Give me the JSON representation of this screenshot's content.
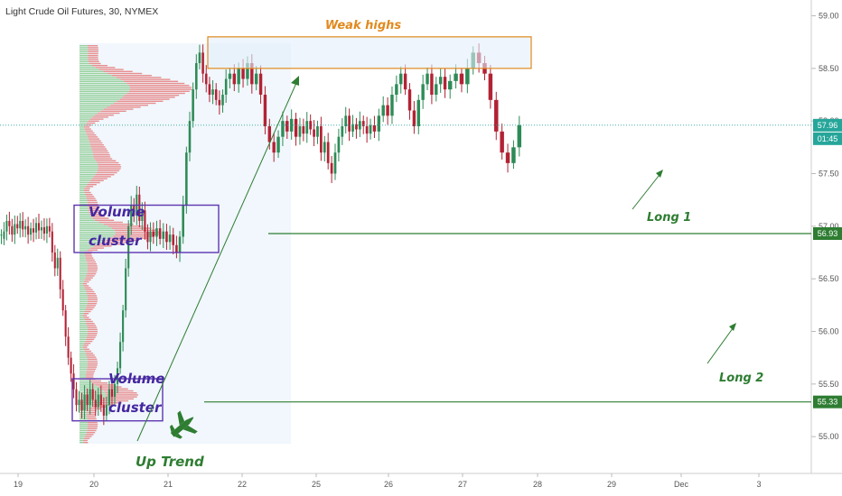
{
  "header": {
    "title": "Light Crude Oil Futures, 30, NYMEX"
  },
  "colors": {
    "up": "#26a69a",
    "down": "#ef5350",
    "candle_up": "#2e8b57",
    "candle_down": "#b22234",
    "annotation_green": "#2e7d32",
    "annotation_orange": "#e08a1e",
    "annotation_purple": "#5e35b1",
    "axis_line": "#cccccc"
  },
  "chart_data": {
    "type": "candlestick",
    "symbol": "Light Crude Oil Futures",
    "interval": "30",
    "exchange": "NYMEX",
    "ylim": [
      54.65,
      59.15
    ],
    "y_ticks": [
      "59.00",
      "58.50",
      "58.00",
      "57.50",
      "57.00",
      "56.50",
      "56.00",
      "55.50",
      "55.00"
    ],
    "x_ticks": [
      "19",
      "20",
      "21",
      "22",
      "25",
      "26",
      "27",
      "28",
      "29",
      "Dec",
      "3"
    ],
    "last_price": "57.96",
    "countdown": "01:45",
    "levels": [
      {
        "label": "Long 1",
        "price": 56.93,
        "price_label": "56.93"
      },
      {
        "label": "Long 2",
        "price": 55.33,
        "price_label": "55.33"
      }
    ],
    "zones": [
      {
        "label": "Weak highs",
        "price_top": 58.8,
        "price_bottom": 58.5
      },
      {
        "label": "Volume cluster",
        "price_top": 57.2,
        "price_bottom": 56.75
      },
      {
        "label": "Volume cluster",
        "price_top": 55.55,
        "price_bottom": 55.15
      }
    ],
    "annotations": [
      "Up Trend",
      "Long 1",
      "Long 2",
      "Weak highs"
    ],
    "series": [
      {
        "segment": "day-19",
        "points": [
          [
            56.92,
            56.92
          ],
          [
            56.88,
            56.95
          ],
          [
            56.95,
            57.05
          ],
          [
            57.05,
            57.0
          ],
          [
            57.0,
            56.92
          ],
          [
            56.92,
            57.02
          ],
          [
            57.02,
            56.98
          ],
          [
            56.98,
            57.05
          ],
          [
            57.05,
            56.97
          ],
          [
            56.97,
            57.0
          ],
          [
            57.0,
            56.92
          ],
          [
            56.92,
            56.98
          ],
          [
            56.98,
            56.94
          ],
          [
            56.94,
            57.03
          ],
          [
            57.03,
            56.96
          ],
          [
            56.96,
            56.99
          ],
          [
            56.99,
            56.93
          ],
          [
            56.93,
            57.0
          ],
          [
            57.0,
            56.95
          ],
          [
            56.95,
            56.75
          ],
          [
            56.75,
            56.6
          ],
          [
            56.6,
            56.7
          ],
          [
            56.7,
            56.4
          ],
          [
            56.4,
            56.2
          ],
          [
            56.2,
            55.95
          ],
          [
            55.95,
            55.75
          ],
          [
            55.75,
            55.6
          ],
          [
            55.6,
            55.45
          ],
          [
            55.45,
            55.3
          ]
        ]
      },
      {
        "segment": "day-20",
        "points": [
          [
            55.3,
            55.35
          ],
          [
            55.35,
            55.25
          ],
          [
            55.25,
            55.4
          ],
          [
            55.4,
            55.3
          ],
          [
            55.3,
            55.45
          ],
          [
            55.45,
            55.35
          ],
          [
            55.35,
            55.28
          ],
          [
            55.28,
            55.4
          ],
          [
            55.4,
            55.3
          ],
          [
            55.3,
            55.2
          ],
          [
            55.2,
            55.3
          ],
          [
            55.3,
            55.45
          ],
          [
            55.45,
            55.38
          ],
          [
            55.38,
            55.5
          ],
          [
            55.5,
            55.65
          ],
          [
            55.65,
            55.9
          ],
          [
            55.9,
            56.2
          ],
          [
            56.2,
            56.6
          ],
          [
            56.6,
            57.0
          ],
          [
            57.0,
            57.2
          ],
          [
            57.2,
            57.1
          ],
          [
            57.1,
            57.3
          ],
          [
            57.3,
            57.05
          ],
          [
            57.05,
            57.15
          ],
          [
            57.15,
            56.95
          ],
          [
            56.95,
            56.85
          ],
          [
            56.85,
            56.95
          ]
        ]
      },
      {
        "segment": "day-21",
        "points": [
          [
            56.95,
            56.9
          ],
          [
            56.9,
            56.98
          ],
          [
            56.98,
            56.88
          ],
          [
            56.88,
            56.95
          ],
          [
            56.95,
            56.85
          ],
          [
            56.85,
            56.92
          ],
          [
            56.92,
            56.82
          ],
          [
            56.82,
            56.75
          ],
          [
            56.75,
            56.9
          ],
          [
            56.9,
            57.2
          ],
          [
            57.2,
            57.7
          ],
          [
            57.7,
            58.0
          ],
          [
            58.0,
            58.3
          ],
          [
            58.3,
            58.55
          ],
          [
            58.55,
            58.65
          ],
          [
            58.65,
            58.45
          ],
          [
            58.45,
            58.35
          ],
          [
            58.35,
            58.25
          ],
          [
            58.25,
            58.3
          ],
          [
            58.3,
            58.2
          ],
          [
            58.2,
            58.15
          ],
          [
            58.15,
            58.25
          ],
          [
            58.25,
            58.4
          ]
        ]
      },
      {
        "segment": "day-22",
        "points": [
          [
            58.4,
            58.45
          ],
          [
            58.45,
            58.35
          ],
          [
            58.35,
            58.5
          ],
          [
            58.5,
            58.4
          ],
          [
            58.4,
            58.55
          ],
          [
            58.55,
            58.35
          ],
          [
            58.35,
            58.45
          ],
          [
            58.45,
            58.25
          ],
          [
            58.25,
            57.95
          ],
          [
            57.95,
            57.8
          ],
          [
            57.8,
            57.7
          ],
          [
            57.7,
            57.85
          ],
          [
            57.85,
            58.0
          ],
          [
            58.0,
            57.9
          ],
          [
            57.9,
            58.02
          ],
          [
            58.02,
            57.85
          ]
        ]
      },
      {
        "segment": "day-25",
        "points": [
          [
            57.85,
            57.95
          ],
          [
            57.95,
            57.88
          ],
          [
            57.88,
            58.0
          ],
          [
            58.0,
            57.92
          ],
          [
            57.92,
            57.85
          ],
          [
            57.85,
            57.95
          ],
          [
            57.95,
            57.7
          ],
          [
            57.7,
            57.8
          ],
          [
            57.8,
            57.6
          ],
          [
            57.6,
            57.5
          ],
          [
            57.5,
            57.7
          ],
          [
            57.7,
            57.85
          ],
          [
            57.85,
            57.95
          ],
          [
            57.95,
            58.05
          ],
          [
            58.05,
            57.9
          ],
          [
            57.9,
            57.97
          ],
          [
            57.97,
            57.92
          ],
          [
            57.92,
            58.0
          ],
          [
            58.0,
            57.95
          ],
          [
            57.95,
            57.88
          ],
          [
            57.88,
            57.96
          ]
        ]
      },
      {
        "segment": "day-26",
        "points": [
          [
            57.96,
            57.9
          ],
          [
            57.9,
            58.05
          ],
          [
            58.05,
            58.15
          ],
          [
            58.15,
            58.05
          ],
          [
            58.05,
            58.25
          ],
          [
            58.25,
            58.35
          ],
          [
            58.35,
            58.45
          ],
          [
            58.45,
            58.3
          ],
          [
            58.3,
            58.1
          ],
          [
            58.1,
            57.95
          ],
          [
            57.95,
            58.2
          ],
          [
            58.2,
            58.35
          ],
          [
            58.35,
            58.45
          ],
          [
            58.45,
            58.25
          ],
          [
            58.25,
            58.35
          ],
          [
            58.35,
            58.42
          ],
          [
            58.42,
            58.3
          ]
        ]
      },
      {
        "segment": "day-27",
        "points": [
          [
            58.3,
            58.38
          ],
          [
            58.38,
            58.45
          ],
          [
            58.45,
            58.35
          ],
          [
            58.35,
            58.5
          ],
          [
            58.5,
            58.65
          ],
          [
            58.65,
            58.55
          ],
          [
            58.55,
            58.45
          ],
          [
            58.45,
            58.2
          ],
          [
            58.2,
            57.9
          ],
          [
            57.9,
            57.7
          ],
          [
            57.7,
            57.6
          ],
          [
            57.6,
            57.75
          ],
          [
            57.75,
            57.96
          ]
        ]
      }
    ]
  }
}
